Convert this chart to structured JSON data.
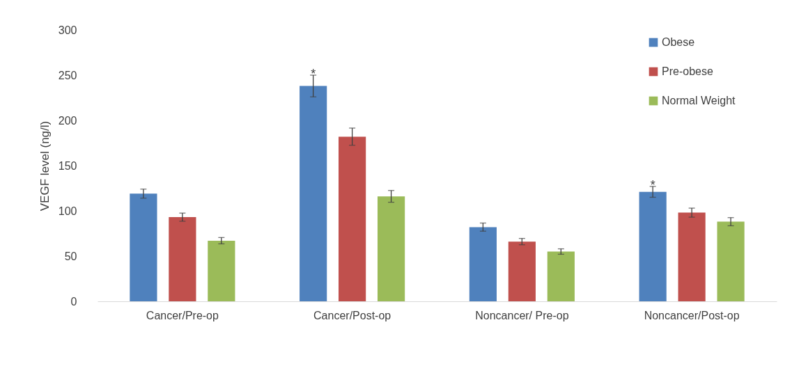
{
  "chart_data": {
    "type": "bar",
    "ylabel": "VEGF level (ng/l)",
    "categories": [
      "Cancer/Pre-op",
      "Cancer/Post-op",
      "Noncancer/ Pre-op",
      "Noncancer/Post-op"
    ],
    "series": [
      {
        "name": "Obese",
        "color": "#4f81bd",
        "values": [
          119,
          238,
          82,
          121
        ],
        "errors": [
          5,
          12,
          4.5,
          6
        ]
      },
      {
        "name": "Pre-obese",
        "color": "#c0504d",
        "values": [
          93,
          182,
          66,
          98
        ],
        "errors": [
          4.5,
          9.5,
          3.5,
          5
        ]
      },
      {
        "name": "Normal Weight",
        "color": "#9bbb59",
        "values": [
          67,
          116,
          55,
          88
        ],
        "errors": [
          3.5,
          6.5,
          3,
          4.5
        ]
      }
    ],
    "ylim": [
      0,
      300
    ],
    "yticks": [
      0,
      50,
      100,
      150,
      200,
      250,
      300
    ],
    "grid": false,
    "legend": "top right",
    "annotations": [
      "*",
      "*"
    ]
  }
}
